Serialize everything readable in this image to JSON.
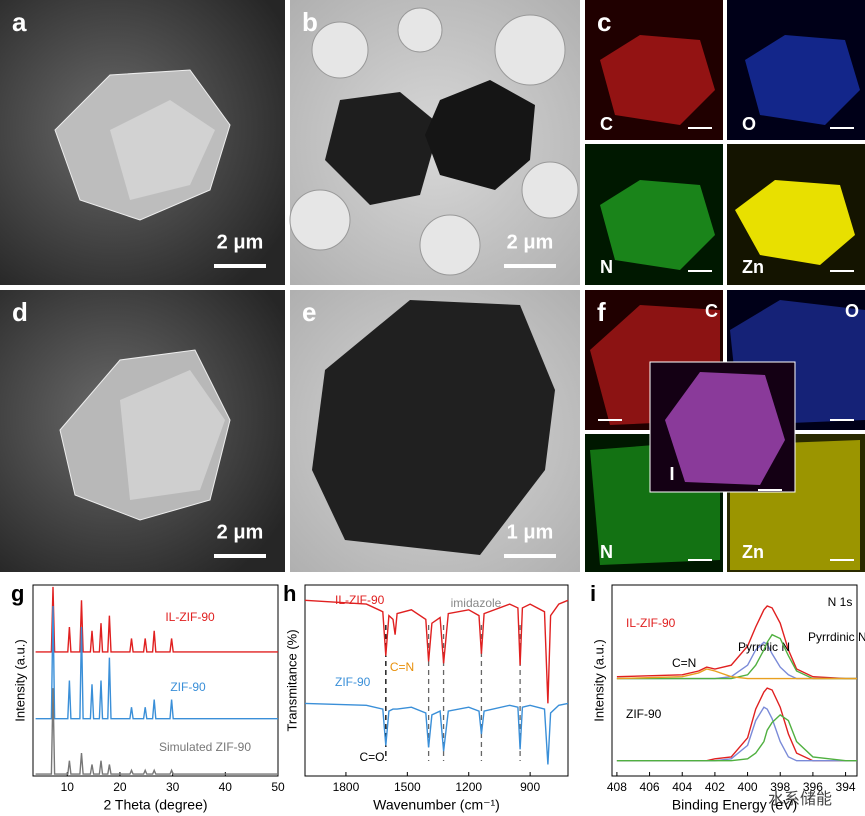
{
  "panels": [
    {
      "label": "a",
      "scale": "2 μm"
    },
    {
      "label": "b",
      "scale": "2 μm"
    },
    {
      "label": "c",
      "maps": [
        "C",
        "O",
        "N",
        "Zn"
      ]
    },
    {
      "label": "d",
      "scale": "2 μm"
    },
    {
      "label": "e",
      "scale": "1 μm"
    },
    {
      "label": "f",
      "maps": [
        "C",
        "O",
        "N",
        "Zn",
        "I"
      ]
    }
  ],
  "watermark": "水系储能",
  "chart_data": [
    {
      "type": "line",
      "panel": "g",
      "x_label": "2 Theta (degree)",
      "y_label": "Intensity (a.u.)",
      "xlim": [
        3.5,
        50
      ],
      "xticks": [
        10,
        20,
        30,
        40,
        50
      ],
      "ylim": [
        0,
        10
      ],
      "x": [
        4,
        7.0,
        7.3,
        7.6,
        10.1,
        10.4,
        10.7,
        12.4,
        12.7,
        13.0,
        14.4,
        14.7,
        15.0,
        16.1,
        16.4,
        16.7,
        17.7,
        18.0,
        18.3,
        21.9,
        22.2,
        22.5,
        24.5,
        24.8,
        25.1,
        26.2,
        26.5,
        26.8,
        29.5,
        29.8,
        30.1,
        50
      ],
      "series": [
        {
          "name": "IL-ZIF-90",
          "color": "#e02020",
          "values": [
            6.5,
            6.5,
            9.9,
            6.5,
            6.5,
            7.8,
            6.5,
            6.5,
            9.2,
            6.5,
            6.5,
            7.6,
            6.5,
            6.5,
            8.0,
            6.5,
            6.5,
            8.4,
            6.5,
            6.5,
            7.2,
            6.5,
            6.5,
            7.2,
            6.5,
            6.5,
            7.6,
            6.5,
            6.5,
            7.2,
            6.5,
            6.5
          ]
        },
        {
          "name": "ZIF-90",
          "color": "#3a8fd8",
          "values": [
            3.0,
            3.0,
            8.9,
            3.0,
            3.0,
            5.0,
            3.0,
            3.0,
            7.8,
            3.0,
            3.0,
            4.8,
            3.0,
            3.0,
            5.0,
            3.0,
            3.0,
            6.2,
            3.0,
            3.0,
            3.6,
            3.0,
            3.0,
            3.6,
            3.0,
            3.0,
            4.0,
            3.0,
            3.0,
            4.0,
            3.0,
            3.0
          ]
        },
        {
          "name": "Simulated ZIF-90",
          "color": "#777777",
          "values": [
            0.1,
            0.1,
            4.6,
            0.1,
            0.1,
            0.8,
            0.1,
            0.1,
            1.2,
            0.1,
            0.1,
            0.6,
            0.1,
            0.1,
            0.8,
            0.1,
            0.1,
            0.6,
            0.1,
            0.1,
            0.3,
            0.1,
            0.1,
            0.3,
            0.1,
            0.1,
            0.3,
            0.1,
            0.1,
            0.3,
            0.1,
            0.1
          ]
        }
      ],
      "annotations": []
    },
    {
      "type": "line",
      "panel": "h",
      "x_label": "Wavenumber (cm⁻¹)",
      "y_label": "Transmitance (%)",
      "xlim": [
        2000,
        715
      ],
      "xticks": [
        1800,
        1500,
        1200,
        900
      ],
      "ylim": [
        0,
        10
      ],
      "x": [
        2000,
        1700,
        1620,
        1605,
        1590,
        1570,
        1560,
        1550,
        1480,
        1410,
        1396,
        1380,
        1340,
        1323,
        1300,
        1200,
        1150,
        1138,
        1125,
        1000,
        960,
        949,
        938,
        900,
        830,
        813,
        800,
        760,
        715
      ],
      "series": [
        {
          "name": "IL-ZIF-90",
          "color": "#e02020",
          "values": [
            9.2,
            9.0,
            8.6,
            6.3,
            8.4,
            8.2,
            7.4,
            8.5,
            8.7,
            8.2,
            6.0,
            8.0,
            8.3,
            5.9,
            8.5,
            8.7,
            8.4,
            6.4,
            8.5,
            9.0,
            8.8,
            5.8,
            8.8,
            9.0,
            8.6,
            3.8,
            8.4,
            9.0,
            9.2
          ]
        },
        {
          "name": "ZIF-90",
          "color": "#3a8fd8",
          "values": [
            3.8,
            3.7,
            3.5,
            1.6,
            3.4,
            3.5,
            3.5,
            3.5,
            3.6,
            3.3,
            1.5,
            3.2,
            3.4,
            1.3,
            3.4,
            3.6,
            3.4,
            2.2,
            3.4,
            3.7,
            3.6,
            1.4,
            3.6,
            3.7,
            3.5,
            0.6,
            3.3,
            3.7,
            3.8
          ]
        }
      ],
      "reference_lines": [
        1605,
        1396,
        1323,
        1138,
        949
      ],
      "annotations": [
        {
          "text": "C=O",
          "color": "#000000"
        },
        {
          "text": "C=N",
          "color": "#e8900a"
        },
        {
          "text": "imidazole",
          "color": "#888888"
        }
      ]
    },
    {
      "type": "line",
      "panel": "i",
      "x_label": "Binding Energy (eV)",
      "y_label": "Intensity (a.u.)",
      "xlim": [
        408.3,
        393.3
      ],
      "xticks": [
        408,
        406,
        404,
        402,
        400,
        398,
        396,
        394
      ],
      "ylim": [
        0,
        10
      ],
      "x": [
        408,
        404,
        403,
        402.5,
        402,
        401,
        400,
        399.5,
        399,
        398.8,
        398.5,
        398,
        397.5,
        397,
        396,
        394,
        393.3
      ],
      "series": [
        {
          "name": "IL-ZIF-90",
          "color": "#e02020",
          "values": [
            5.2,
            5.3,
            5.5,
            5.7,
            5.6,
            5.8,
            6.8,
            7.8,
            8.7,
            8.9,
            8.8,
            8.0,
            6.6,
            5.6,
            5.2,
            5.1,
            5.1
          ]
        },
        {
          "name": "Pyrrolic N",
          "color": "#7a8ad8",
          "values": [
            5.1,
            5.1,
            5.1,
            5.1,
            5.1,
            5.2,
            5.8,
            6.6,
            7.0,
            6.9,
            6.4,
            5.7,
            5.3,
            5.1,
            5.1,
            5.1,
            5.1
          ]
        },
        {
          "name": "Pyrrdinic N",
          "color": "#50b040",
          "values": [
            5.1,
            5.1,
            5.1,
            5.1,
            5.1,
            5.1,
            5.3,
            5.8,
            6.6,
            7.0,
            7.4,
            7.2,
            6.3,
            5.5,
            5.1,
            5.1,
            5.1
          ]
        },
        {
          "name": "C=N",
          "color": "#e8a020",
          "values": [
            5.1,
            5.2,
            5.4,
            5.6,
            5.5,
            5.2,
            5.1,
            5.1,
            5.1,
            5.1,
            5.1,
            5.1,
            5.1,
            5.1,
            5.1,
            5.1,
            5.1
          ]
        },
        {
          "name": "ZIF-90",
          "color": "#e02020",
          "values": [
            0.8,
            0.8,
            0.8,
            0.8,
            0.9,
            1.0,
            2.0,
            3.5,
            4.4,
            4.6,
            4.5,
            3.6,
            2.2,
            1.2,
            0.8,
            0.8,
            0.8
          ]
        },
        {
          "color": "#7a8ad8",
          "values": [
            0.8,
            0.8,
            0.8,
            0.8,
            0.8,
            0.9,
            1.6,
            2.9,
            3.6,
            3.5,
            3.0,
            1.8,
            1.0,
            0.8,
            0.8,
            0.8,
            0.8
          ]
        },
        {
          "color": "#50b040",
          "values": [
            0.8,
            0.8,
            0.8,
            0.8,
            0.8,
            0.8,
            0.9,
            1.2,
            1.8,
            2.4,
            2.8,
            3.2,
            2.9,
            1.8,
            1.0,
            0.8,
            0.8
          ]
        }
      ],
      "annotations": [
        {
          "text": "N 1s",
          "color": "#000000"
        }
      ]
    }
  ]
}
